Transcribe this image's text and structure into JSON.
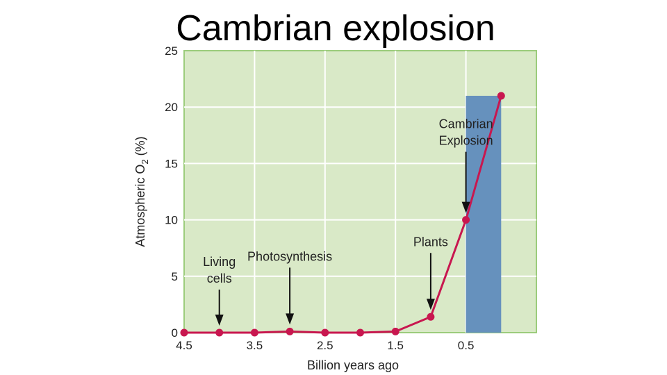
{
  "slide": {
    "title": "Cambrian explosion"
  },
  "chart_data": {
    "type": "line",
    "title": "",
    "xlabel": "Billion years ago",
    "ylabel": "Atmospheric O",
    "ylabel_subscript": "2",
    "ylabel_suffix": " (%)",
    "x_ticks": [
      "4.5",
      "3.5",
      "2.5",
      "1.5",
      "0.5"
    ],
    "x_tick_values": [
      4.5,
      3.5,
      2.5,
      1.5,
      0.5
    ],
    "y_ticks": [
      "0",
      "5",
      "10",
      "15",
      "20",
      "25"
    ],
    "xlim": [
      4.5,
      -0.5
    ],
    "ylim": [
      0,
      25
    ],
    "x_reversed": true,
    "grid": true,
    "legend": "none",
    "series": [
      {
        "x": [
          4.5,
          4.0,
          3.5,
          3.0,
          2.5,
          2.0,
          1.5,
          1.0,
          0.5,
          0.0
        ],
        "y": [
          0,
          0,
          0,
          0.1,
          0,
          0,
          0.1,
          1.4,
          10,
          21
        ],
        "color": "#c8174f"
      }
    ],
    "highlight": {
      "x_from": 0.5,
      "x_to": 0.0,
      "y_top": 21,
      "color": "#6691bd"
    },
    "annotations": [
      {
        "lines": [
          "Living",
          "cells"
        ],
        "x": 4.0,
        "y": 0
      },
      {
        "lines": [
          "Photosynthesis"
        ],
        "x": 3.0,
        "y": 0.1
      },
      {
        "lines": [
          "Plants"
        ],
        "x": 1.0,
        "y": 1.4
      },
      {
        "lines": [
          "Cambrian",
          "Explosion"
        ],
        "x": 0.5,
        "y": 10
      }
    ],
    "colors": {
      "plot_bg": "#d9e9c7",
      "plot_border": "#9ccc7c",
      "grid": "#ffffff",
      "axis_text": "#222222"
    }
  }
}
